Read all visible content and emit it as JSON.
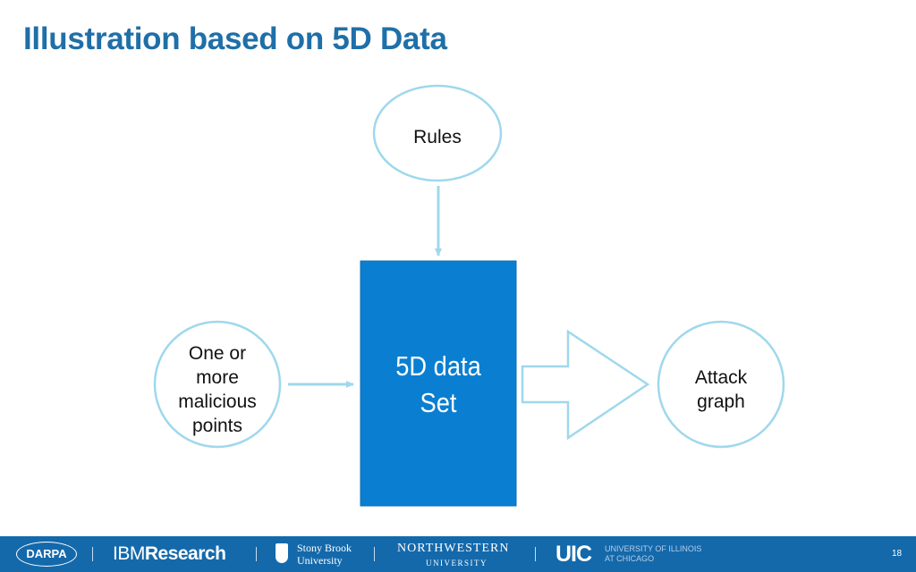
{
  "title": "Illustration based on 5D Data",
  "diagram": {
    "rules_node": "Rules",
    "input_node_lines": [
      "One or",
      "more",
      "malicious",
      "points"
    ],
    "center_box_lines": [
      "5D data",
      "Set"
    ],
    "output_node_lines": [
      "Attack",
      "graph"
    ]
  },
  "colors": {
    "title": "#1f6fa8",
    "circle_stroke": "#9fd8ec",
    "box_fill": "#0a7fd1",
    "footer_bg": "#1469ab"
  },
  "footer": {
    "darpa": "DARPA",
    "ibm": "IBM",
    "research": "Research",
    "stony_brook_1": "Stony Brook",
    "stony_brook_2": "University",
    "northwestern_1": "NORTHWESTERN",
    "northwestern_2": "UNIVERSITY",
    "uic": "UIC",
    "uic_sub_1": "UNIVERSITY OF ILLINOIS",
    "uic_sub_2": "AT CHICAGO",
    "page_number": "18"
  }
}
